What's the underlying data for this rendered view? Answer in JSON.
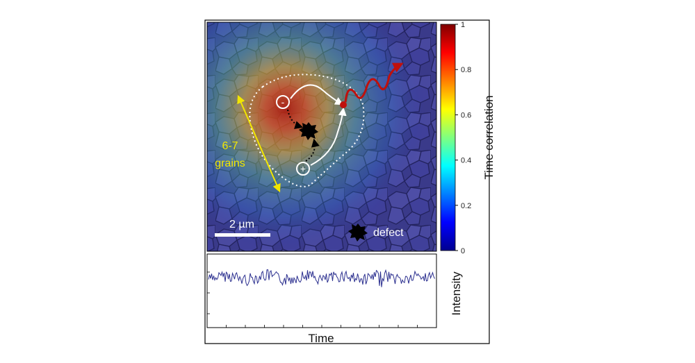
{
  "figure": {
    "scale_bar_label": "2 µm",
    "grain_span_label_line1": "6-7",
    "grain_span_label_line2": "grains",
    "charge_minus": "-",
    "charge_plus": "+",
    "legend_defect_label": "defect"
  },
  "colorbar": {
    "label": "Time correlation",
    "ticks": [
      "0",
      "0.2",
      "0.4",
      "0.6",
      "0.8",
      "1"
    ],
    "tick_values": [
      0,
      0.2,
      0.4,
      0.6,
      0.8,
      1
    ],
    "range": [
      0,
      1
    ]
  },
  "trace": {
    "ylabel": "Intensity",
    "xlabel": "Time",
    "line_color": "#2b2f8f"
  },
  "colors": {
    "annotation_yellow": "#f2e600",
    "emission_red": "#c0100c",
    "defect_black": "#000000",
    "path_white": "#ffffff"
  }
}
